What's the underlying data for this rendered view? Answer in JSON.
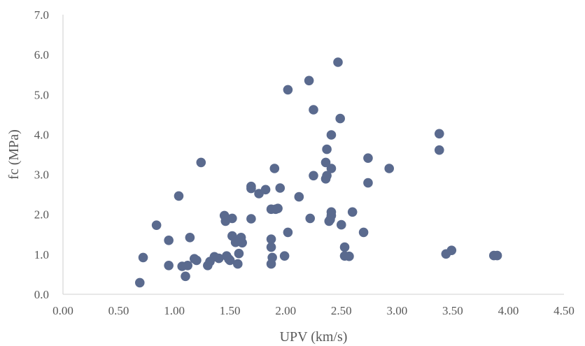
{
  "chart_data": {
    "type": "scatter",
    "xlabel": "UPV (km/s)",
    "ylabel": "fc (MPa)",
    "xlim": [
      0,
      4.5
    ],
    "ylim": [
      0,
      7
    ],
    "x_ticks": [
      "0.00",
      "0.50",
      "1.00",
      "1.50",
      "2.00",
      "2.50",
      "3.00",
      "3.50",
      "4.00",
      "4.50"
    ],
    "y_ticks": [
      "0.0",
      "1.0",
      "2.0",
      "3.0",
      "4.0",
      "5.0",
      "6.0",
      "7.0"
    ],
    "grid": false,
    "legend": "none",
    "marker_color": "#5a6a8e",
    "series": [
      {
        "points": [
          [
            0.69,
            0.29
          ],
          [
            0.72,
            0.92
          ],
          [
            0.84,
            1.73
          ],
          [
            0.95,
            1.35
          ],
          [
            0.95,
            0.72
          ],
          [
            1.04,
            2.46
          ],
          [
            1.07,
            0.7
          ],
          [
            1.1,
            0.45
          ],
          [
            1.12,
            0.72
          ],
          [
            1.14,
            1.42
          ],
          [
            1.18,
            0.89
          ],
          [
            1.2,
            0.85
          ],
          [
            1.24,
            3.3
          ],
          [
            1.3,
            0.72
          ],
          [
            1.32,
            0.82
          ],
          [
            1.36,
            0.94
          ],
          [
            1.4,
            0.9
          ],
          [
            1.45,
            1.97
          ],
          [
            1.46,
            1.83
          ],
          [
            1.47,
            0.96
          ],
          [
            1.49,
            0.88
          ],
          [
            1.5,
            0.85
          ],
          [
            1.52,
            1.46
          ],
          [
            1.52,
            1.9
          ],
          [
            1.55,
            1.3
          ],
          [
            1.57,
            0.76
          ],
          [
            1.58,
            1.02
          ],
          [
            1.6,
            1.42
          ],
          [
            1.61,
            1.29
          ],
          [
            1.69,
            2.7
          ],
          [
            1.69,
            2.65
          ],
          [
            1.69,
            1.89
          ],
          [
            1.76,
            2.52
          ],
          [
            1.82,
            2.62
          ],
          [
            1.87,
            2.13
          ],
          [
            1.87,
            1.38
          ],
          [
            1.87,
            1.18
          ],
          [
            1.87,
            0.76
          ],
          [
            1.88,
            0.92
          ],
          [
            1.9,
            3.15
          ],
          [
            1.91,
            2.13
          ],
          [
            1.93,
            2.15
          ],
          [
            1.95,
            2.66
          ],
          [
            1.99,
            0.96
          ],
          [
            2.02,
            5.12
          ],
          [
            2.02,
            1.55
          ],
          [
            2.12,
            2.44
          ],
          [
            2.21,
            5.35
          ],
          [
            2.22,
            1.9
          ],
          [
            2.25,
            4.62
          ],
          [
            2.25,
            2.97
          ],
          [
            2.36,
            3.3
          ],
          [
            2.36,
            2.89
          ],
          [
            2.37,
            3.63
          ],
          [
            2.37,
            2.97
          ],
          [
            2.39,
            1.83
          ],
          [
            2.4,
            1.87
          ],
          [
            2.41,
            3.99
          ],
          [
            2.41,
            3.15
          ],
          [
            2.41,
            2.06
          ],
          [
            2.41,
            1.97
          ],
          [
            2.47,
            5.81
          ],
          [
            2.49,
            4.4
          ],
          [
            2.5,
            1.74
          ],
          [
            2.53,
            1.18
          ],
          [
            2.53,
            0.96
          ],
          [
            2.57,
            0.95
          ],
          [
            2.6,
            2.06
          ],
          [
            2.7,
            1.55
          ],
          [
            2.74,
            3.41
          ],
          [
            2.74,
            2.79
          ],
          [
            2.93,
            3.15
          ],
          [
            3.38,
            4.02
          ],
          [
            3.38,
            3.61
          ],
          [
            3.44,
            1.01
          ],
          [
            3.49,
            1.1
          ],
          [
            3.87,
            0.97
          ],
          [
            3.9,
            0.97
          ]
        ]
      }
    ]
  }
}
